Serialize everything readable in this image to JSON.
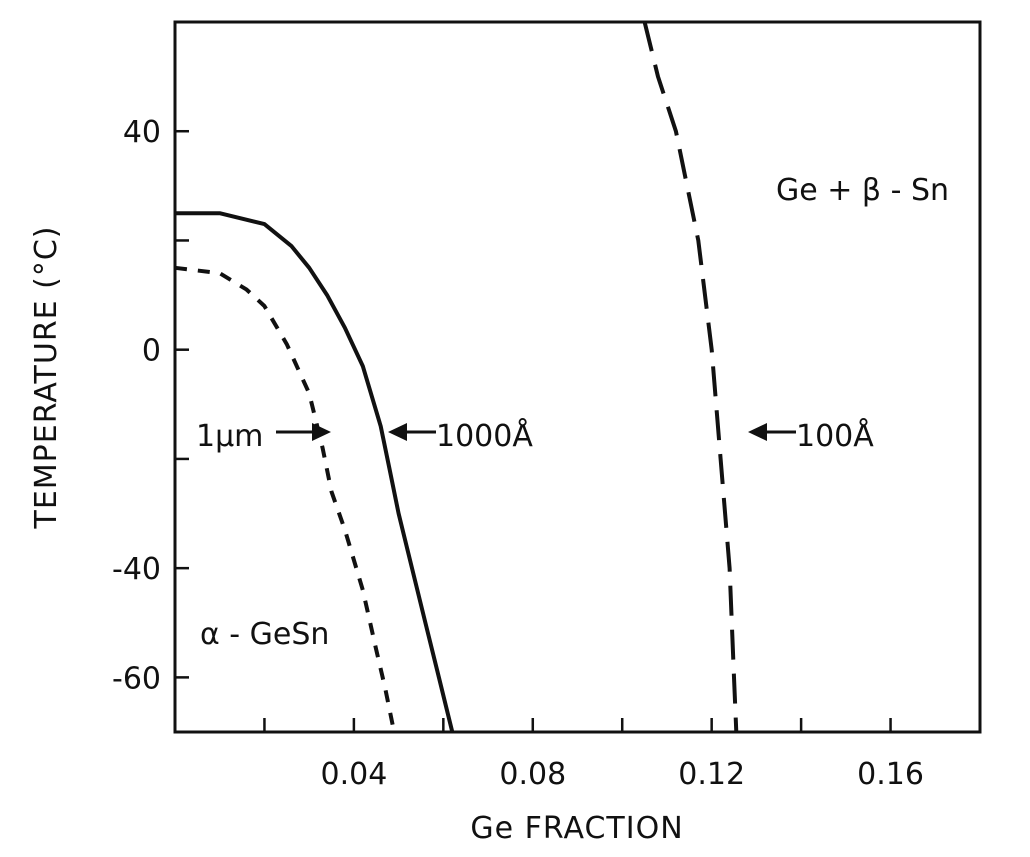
{
  "chart_data": {
    "type": "line",
    "xlabel": "Ge FRACTION",
    "ylabel": "TEMPERATURE (°C)",
    "xlim": [
      0.0,
      0.18
    ],
    "ylim": [
      -70,
      60
    ],
    "x_ticks": [
      0.02,
      0.04,
      0.06,
      0.08,
      0.1,
      0.12,
      0.14,
      0.16
    ],
    "x_tick_labels": [
      "",
      "0.04",
      "",
      "0.08",
      "",
      "0.12",
      "",
      "0.16"
    ],
    "y_ticks": [
      -60,
      -40,
      -20,
      0,
      20,
      40
    ],
    "y_tick_labels": [
      "-60",
      "-40",
      "",
      "0",
      "",
      "40"
    ],
    "grid": false,
    "series": [
      {
        "name": "1000Å",
        "style": "solid",
        "color": "#111111",
        "points": [
          [
            0.0,
            25
          ],
          [
            0.01,
            25
          ],
          [
            0.02,
            23
          ],
          [
            0.026,
            19
          ],
          [
            0.03,
            15
          ],
          [
            0.034,
            10
          ],
          [
            0.038,
            4
          ],
          [
            0.042,
            -3
          ],
          [
            0.046,
            -14
          ],
          [
            0.048,
            -22
          ],
          [
            0.05,
            -30
          ],
          [
            0.053,
            -40
          ],
          [
            0.056,
            -50
          ],
          [
            0.059,
            -60
          ],
          [
            0.062,
            -70
          ]
        ]
      },
      {
        "name": "1μm",
        "style": "short-dash",
        "color": "#111111",
        "points": [
          [
            0.0,
            15
          ],
          [
            0.01,
            14
          ],
          [
            0.016,
            11
          ],
          [
            0.02,
            8
          ],
          [
            0.025,
            1
          ],
          [
            0.03,
            -8
          ],
          [
            0.033,
            -18
          ],
          [
            0.035,
            -26
          ],
          [
            0.038,
            -33
          ],
          [
            0.042,
            -44
          ],
          [
            0.045,
            -55
          ],
          [
            0.047,
            -62
          ],
          [
            0.049,
            -70
          ]
        ]
      },
      {
        "name": "100Å",
        "style": "long-dash",
        "color": "#111111",
        "points": [
          [
            0.105,
            60
          ],
          [
            0.108,
            50
          ],
          [
            0.112,
            40
          ],
          [
            0.117,
            20
          ],
          [
            0.12,
            0
          ],
          [
            0.122,
            -20
          ],
          [
            0.123,
            -30
          ],
          [
            0.124,
            -40
          ],
          [
            0.125,
            -60
          ],
          [
            0.1255,
            -70
          ]
        ]
      }
    ],
    "annotations": {
      "label_1000": "1000Å",
      "label_1um": "1μm",
      "label_100": "100Å",
      "region_right": "Ge + β - Sn",
      "region_left": "α - GeSn"
    }
  }
}
